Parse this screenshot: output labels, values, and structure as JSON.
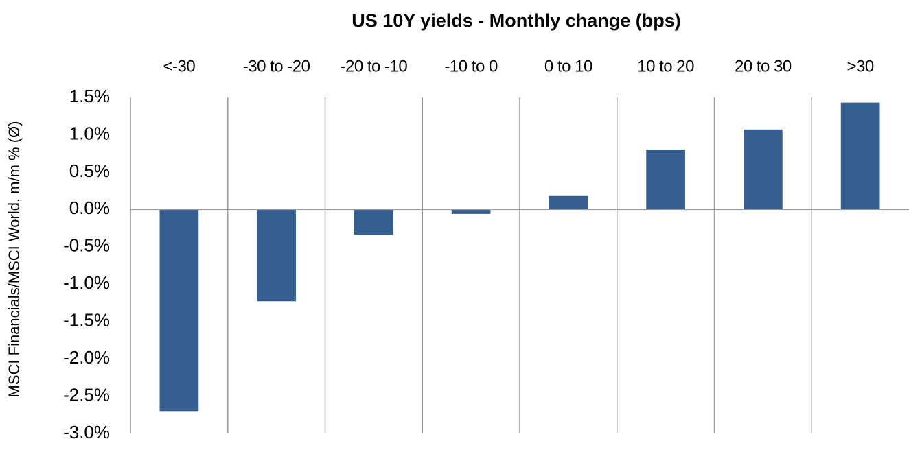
{
  "chart_data": {
    "type": "bar",
    "title": "US 10Y yields  - Monthly change (bps)",
    "y_label": "MSCI Financials/MSCI World, m/m % (Ø)",
    "categories": [
      "<-30",
      "-30 to -20",
      "-20 to -10",
      "-10 to 0",
      "0 to 10",
      "10 to 20",
      "20 to 30",
      ">30"
    ],
    "values": [
      -2.7,
      -1.23,
      -0.34,
      -0.06,
      0.18,
      0.8,
      1.07,
      1.43
    ],
    "color": "#355f91",
    "ylim": [
      -3.0,
      1.5
    ],
    "yticks": [
      {
        "value": 1.5,
        "label": "1.5%"
      },
      {
        "value": 1.0,
        "label": "1.0%"
      },
      {
        "value": 0.5,
        "label": "0.5%"
      },
      {
        "value": 0,
        "label": "0.0%"
      },
      {
        "value": -0.5,
        "label": "-0.5%"
      },
      {
        "value": -1.0,
        "label": "-1.0%"
      },
      {
        "value": -1.5,
        "label": "-1.5%"
      },
      {
        "value": -2.0,
        "label": "-2.0%"
      },
      {
        "value": -2.5,
        "label": "-2.5%"
      },
      {
        "value": -3.0,
        "label": "-3.0%"
      }
    ],
    "grid": false
  }
}
